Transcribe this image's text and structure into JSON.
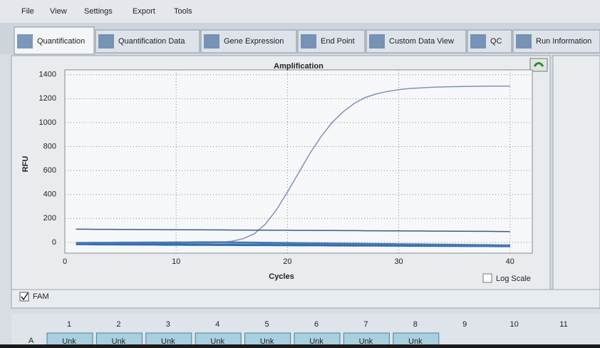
{
  "menu": [
    "File",
    "View",
    "Settings",
    "Export",
    "Tools"
  ],
  "tabs": [
    "Quantification",
    "Quantification Data",
    "Gene Expression",
    "End Point",
    "Custom Data View",
    "QC",
    "Run Information"
  ],
  "chart_data": {
    "type": "line",
    "title": "Amplification",
    "x_label": "Cycles",
    "y_label": "RFU",
    "x": [
      1,
      2,
      3,
      4,
      5,
      6,
      7,
      8,
      9,
      10,
      11,
      12,
      13,
      14,
      15,
      16,
      17,
      18,
      19,
      20,
      21,
      22,
      23,
      24,
      25,
      26,
      27,
      28,
      29,
      30,
      31,
      32,
      33,
      34,
      35,
      36,
      37,
      38,
      39,
      40
    ],
    "series": [
      {
        "color": "#7f93b8",
        "values": [
          -10,
          -10,
          -10,
          -10,
          -10,
          -10,
          -9,
          -9,
          -8,
          -8,
          -7,
          -6,
          -5,
          0,
          10,
          30,
          70,
          150,
          270,
          420,
          580,
          740,
          880,
          1000,
          1090,
          1160,
          1210,
          1240,
          1260,
          1275,
          1285,
          1290,
          1295,
          1298,
          1300,
          1302,
          1303,
          1304,
          1305,
          1305
        ]
      },
      {
        "color": "#3c5a8c",
        "values": [
          110,
          110,
          109,
          109,
          108,
          108,
          107,
          107,
          106,
          106,
          105,
          105,
          104,
          104,
          103,
          103,
          102,
          102,
          101,
          101,
          100,
          100,
          99,
          99,
          98,
          98,
          97,
          97,
          96,
          96,
          95,
          95,
          94,
          94,
          93,
          93,
          92,
          92,
          91,
          90
        ]
      },
      {
        "color": "#2f6db0",
        "values": [
          -15,
          -15,
          -16,
          -16,
          -17,
          -17,
          -18,
          -18,
          -19,
          -19,
          -20,
          -20,
          -20,
          -21,
          -21,
          -22,
          -22,
          -22,
          -23,
          -23,
          -24,
          -24,
          -24,
          -25,
          -25,
          -26,
          -26,
          -26,
          -27,
          -27,
          -28,
          -28,
          -28,
          -29,
          -29,
          -30,
          -30,
          -30,
          -31,
          -31
        ]
      },
      {
        "color": "#4a78b0",
        "values": [
          -5,
          -5,
          -4,
          -4,
          -3,
          -3,
          -2,
          -2,
          -2,
          -1,
          -1,
          0,
          0,
          0,
          -1,
          -2,
          -3,
          -4,
          -5,
          -6,
          -7,
          -8,
          -9,
          -10,
          -11,
          -12,
          -13,
          -14,
          -15,
          -16,
          -17,
          -18,
          -19,
          -20,
          -21,
          -22,
          -23,
          -24,
          -25,
          -26
        ]
      }
    ],
    "xlim": [
      0,
      42
    ],
    "xticks": [
      0,
      10,
      20,
      30,
      40
    ],
    "ylim": [
      -90,
      1440
    ],
    "yticks": [
      0,
      200,
      400,
      600,
      800,
      1000,
      1200,
      1400
    ],
    "grid": true,
    "log_scale": false
  },
  "log_scale_label": "Log Scale",
  "fam_label": "FAM",
  "plate_columns": [
    "1",
    "2",
    "3",
    "4",
    "5",
    "6",
    "7",
    "8",
    "9",
    "10",
    "11"
  ],
  "plate_row": "A",
  "wells": [
    "Unk",
    "Unk",
    "Unk",
    "Unk",
    "Unk",
    "Unk",
    "Unk",
    "Unk"
  ]
}
